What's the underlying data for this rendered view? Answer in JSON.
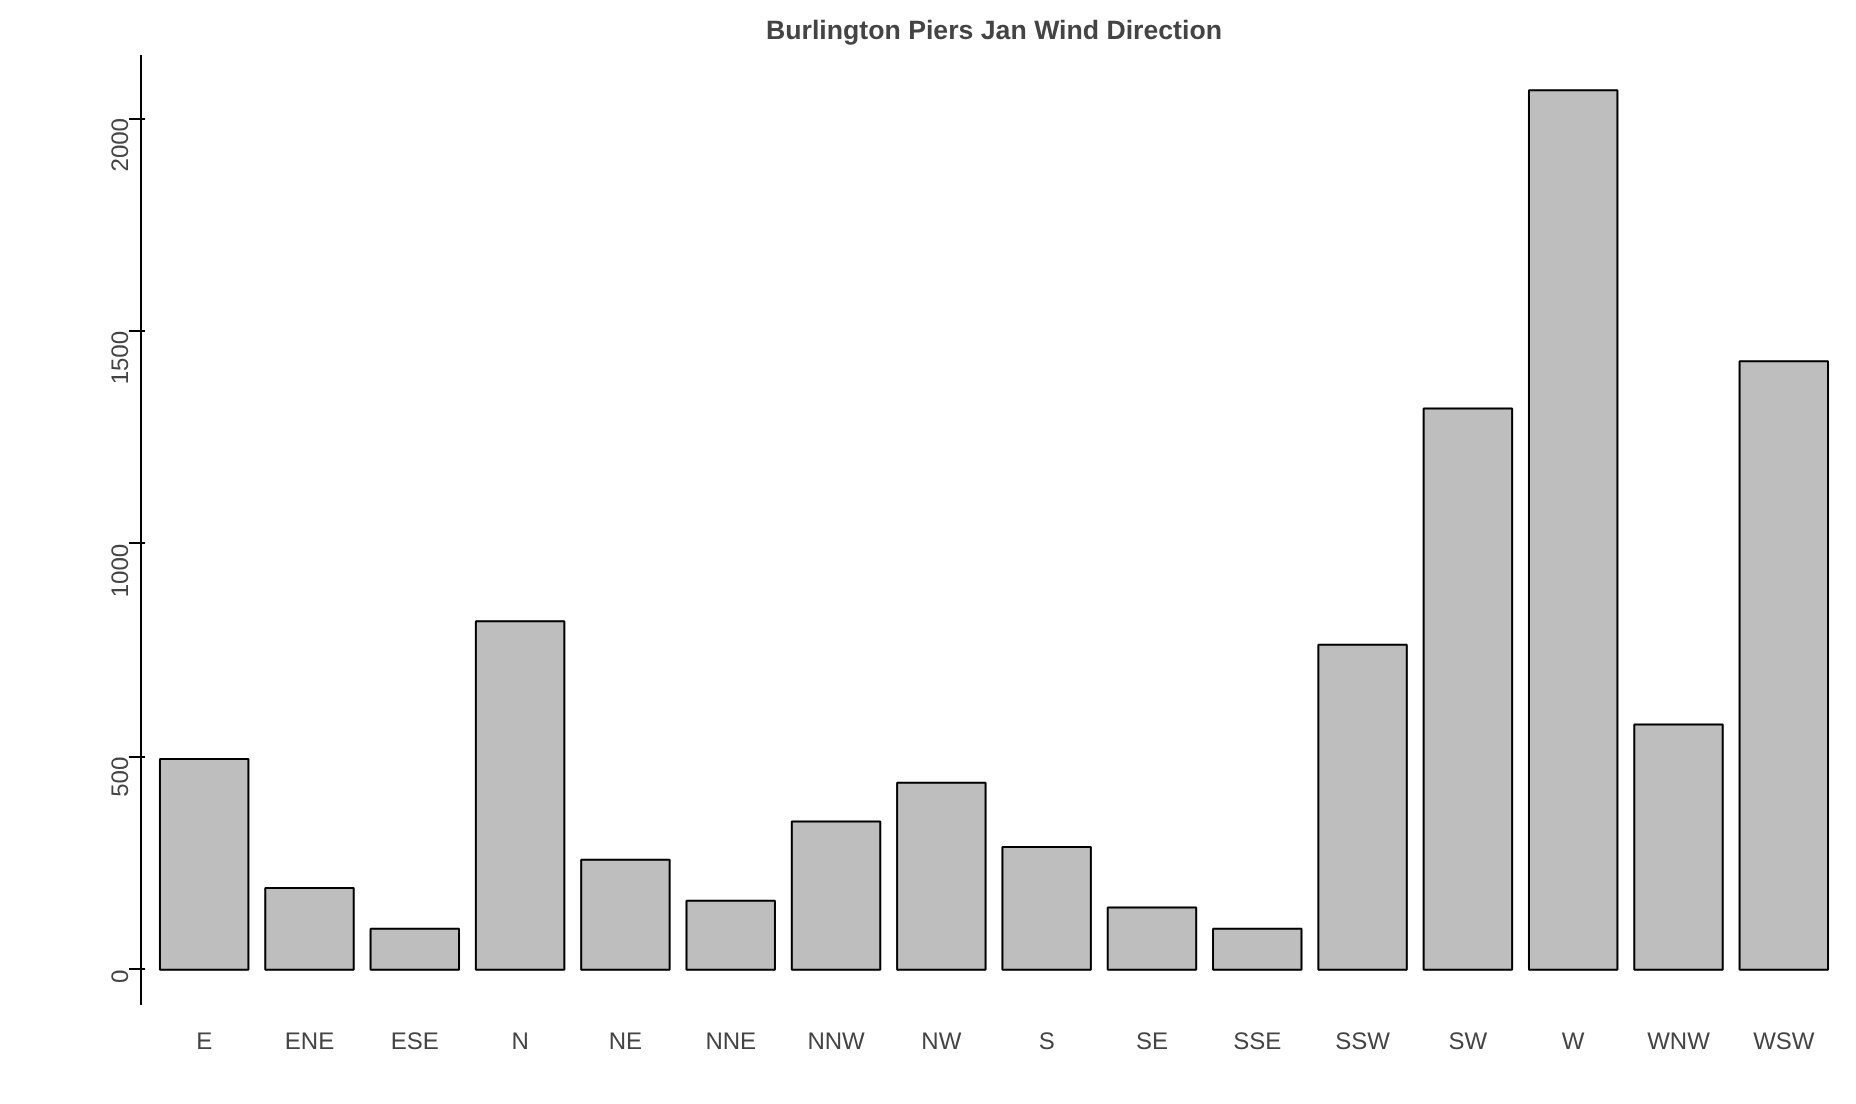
{
  "chart_data": {
    "type": "bar",
    "title": "Burlington Piers Jan Wind Direction",
    "categories": [
      "E",
      "ENE",
      "ESE",
      "N",
      "NE",
      "NNE",
      "NNW",
      "NW",
      "S",
      "SE",
      "SSE",
      "SSW",
      "SW",
      "W",
      "WNW",
      "WSW"
    ],
    "values": [
      495,
      192,
      96,
      818,
      258,
      162,
      348,
      439,
      288,
      146,
      96,
      763,
      1318,
      2065,
      576,
      1429
    ],
    "color": "#bebebe",
    "ylim": [
      -83,
      2148
    ],
    "yticks": [
      0,
      500,
      1000,
      1500,
      2000
    ],
    "grid": false
  }
}
